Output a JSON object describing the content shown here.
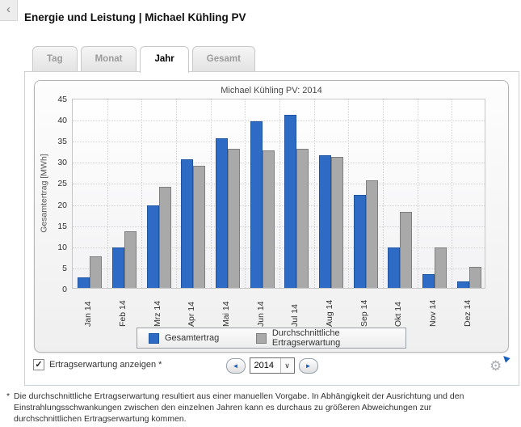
{
  "back_button": {
    "icon": "‹"
  },
  "header": {
    "title": "Energie und Leistung | Michael Kühling PV"
  },
  "tabs": [
    {
      "label": "Tag",
      "active": false
    },
    {
      "label": "Monat",
      "active": false
    },
    {
      "label": "Jahr",
      "active": true
    },
    {
      "label": "Gesamt",
      "active": false
    }
  ],
  "chart_data": {
    "type": "bar",
    "title": "Michael Kühling PV: 2014",
    "xlabel": "",
    "ylabel": "Gesamtertrag [MWh]",
    "ylim": [
      0,
      45
    ],
    "ytick_step": 5,
    "grid": true,
    "legend_position": "bottom",
    "categories": [
      "Jan 14",
      "Feb 14",
      "Mrz 14",
      "Apr 14",
      "Mai 14",
      "Jun 14",
      "Jul 14",
      "Aug 14",
      "Sep 14",
      "Okt 14",
      "Nov 14",
      "Dez 14"
    ],
    "series": [
      {
        "name": "Gesamtertrag",
        "color": "#2d6bc4",
        "border_color": "#1f55a0",
        "values": [
          2.5,
          9.5,
          19.5,
          30.5,
          35.5,
          39.5,
          41,
          31.5,
          22,
          9.5,
          3.3,
          1.5
        ]
      },
      {
        "name": "Durchschnittliche Ertragserwartung",
        "color": "#a9a9a9",
        "border_color": "#7e7e7e",
        "values": [
          7.5,
          13.5,
          24,
          29,
          33,
          32.5,
          33,
          31,
          25.5,
          18,
          9.5,
          5
        ]
      }
    ]
  },
  "controls": {
    "expectation_checkbox": {
      "label": "Ertragserwartung anzeigen *",
      "checked": true,
      "check_glyph": "✓"
    },
    "year_selector": {
      "value": "2014",
      "prev_icon": "◄",
      "next_icon": "►",
      "dropdown_icon": "∨"
    },
    "settings_icon": "⚙"
  },
  "footnote": {
    "marker": "*",
    "text": "Die durchschnittliche Ertragserwartung resultiert aus einer manuellen Vorgabe. In Abhängigkeit der Ausrichtung und den Einstrahlungsschwankungen zwischen den einzelnen Jahren kann es durchaus zu größeren Abweichungen zur durchschnittlichen Ertragserwartung kommen."
  }
}
